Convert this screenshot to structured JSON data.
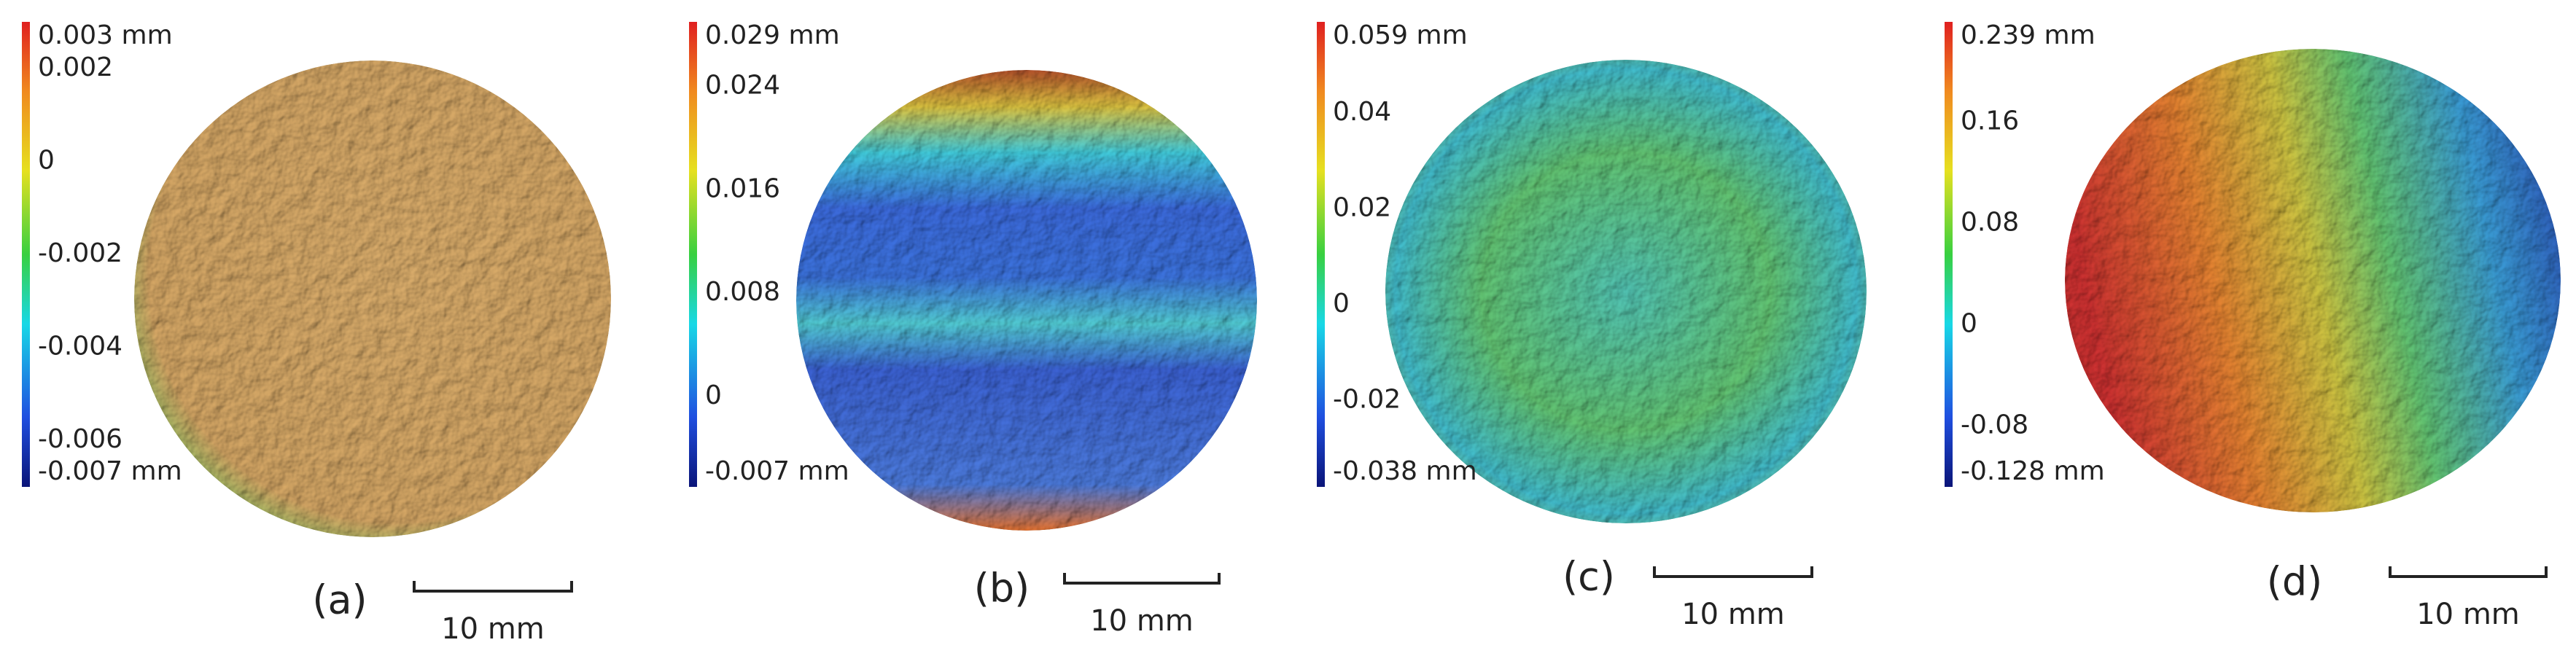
{
  "panels": [
    {
      "label": "(a)",
      "scale_bar": "10 mm",
      "colorbar": {
        "lim": [
          -0.007,
          0.003
        ],
        "ticks": [
          {
            "value": 0.003,
            "label": "0.003 mm"
          },
          0.002,
          0,
          -0.002,
          -0.004,
          -0.006,
          {
            "value": -0.007,
            "label": "-0.007 mm"
          }
        ]
      }
    },
    {
      "label": "(b)",
      "scale_bar": "10 mm",
      "colorbar": {
        "lim": [
          -0.007,
          0.029
        ],
        "ticks": [
          {
            "value": 0.029,
            "label": "0.029 mm"
          },
          0.024,
          0.016,
          0.008,
          0,
          {
            "value": -0.007,
            "label": "-0.007 mm"
          }
        ]
      }
    },
    {
      "label": "(c)",
      "scale_bar": "10 mm",
      "colorbar": {
        "lim": [
          -0.038,
          0.059
        ],
        "ticks": [
          {
            "value": 0.059,
            "label": "0.059 mm"
          },
          0.04,
          0.02,
          0,
          -0.02,
          {
            "value": -0.038,
            "label": "-0.038 mm"
          }
        ]
      }
    },
    {
      "label": "(d)",
      "scale_bar": "10 mm",
      "colorbar": {
        "lim": [
          -0.128,
          0.239
        ],
        "ticks": [
          {
            "value": 0.239,
            "label": "0.239 mm"
          },
          0.16,
          0.08,
          0,
          -0.08,
          {
            "value": -0.128,
            "label": "-0.128 mm"
          }
        ]
      }
    }
  ]
}
